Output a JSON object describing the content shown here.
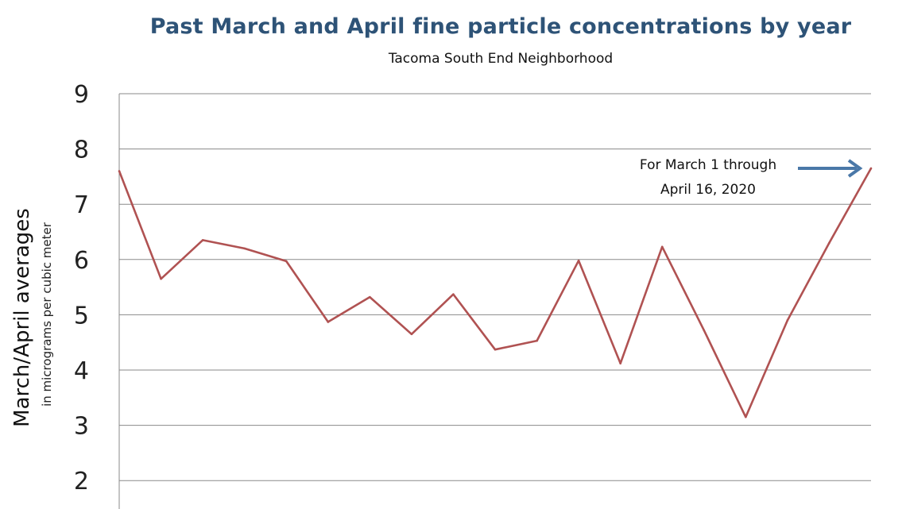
{
  "chart_data": {
    "type": "line",
    "title": "Past March and April fine particle concentrations by year",
    "subtitle": "Tacoma South End Neighborhood",
    "ylabel": "March/April averages",
    "ylabel_sub": "in micrograms per cubic meter",
    "xlabel": "",
    "ylim": [
      2,
      9
    ],
    "yticks": [
      9,
      8,
      7,
      6,
      5,
      4,
      3,
      2
    ],
    "grid": true,
    "legend": "none",
    "series": [
      {
        "color": "#b05252",
        "values": [
          7.6,
          5.65,
          6.35,
          6.2,
          5.97,
          4.87,
          5.32,
          4.65,
          5.37,
          4.37,
          4.53,
          5.98,
          4.12,
          6.23,
          4.72,
          3.15,
          4.9,
          6.3,
          7.65
        ]
      }
    ],
    "annotation": {
      "line1": "For March 1 through",
      "line2": "April 16, 2020",
      "arrow_color": "#4a78a8"
    }
  }
}
